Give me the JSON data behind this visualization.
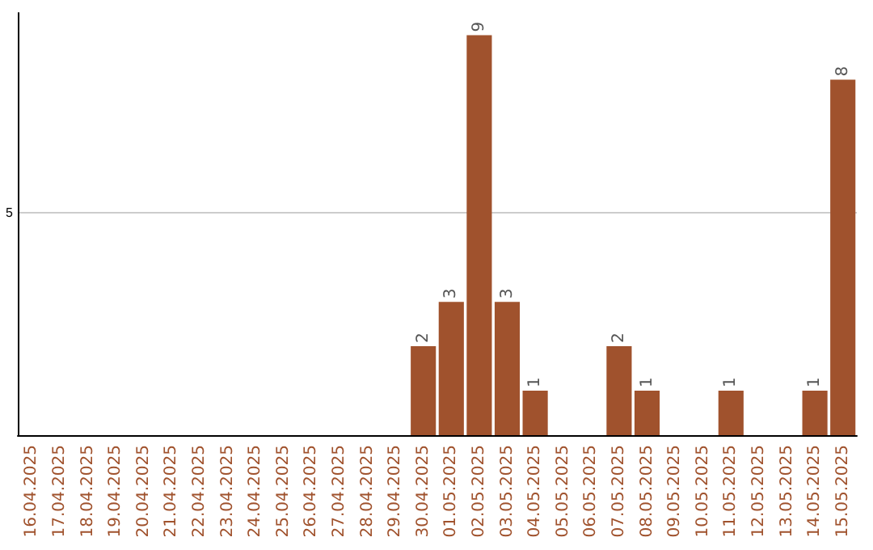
{
  "chart_data": {
    "type": "bar",
    "categories": [
      "16.04.2025",
      "17.04.2025",
      "18.04.2025",
      "19.04.2025",
      "20.04.2025",
      "21.04.2025",
      "22.04.2025",
      "23.04.2025",
      "24.04.2025",
      "25.04.2025",
      "26.04.2025",
      "27.04.2025",
      "28.04.2025",
      "29.04.2025",
      "30.04.2025",
      "01.05.2025",
      "02.05.2025",
      "03.05.2025",
      "04.05.2025",
      "05.05.2025",
      "06.05.2025",
      "07.05.2025",
      "08.05.2025",
      "09.05.2025",
      "10.05.2025",
      "11.05.2025",
      "12.05.2025",
      "13.05.2025",
      "14.05.2025",
      "15.05.2025"
    ],
    "values": [
      null,
      null,
      null,
      null,
      null,
      null,
      null,
      null,
      null,
      null,
      null,
      null,
      null,
      null,
      2,
      3,
      9,
      3,
      1,
      null,
      null,
      2,
      1,
      null,
      null,
      1,
      null,
      null,
      1,
      8
    ],
    "value_labels": [
      null,
      null,
      null,
      null,
      null,
      null,
      null,
      null,
      null,
      null,
      null,
      null,
      null,
      null,
      "2",
      "3",
      "9",
      "3",
      "1",
      null,
      null,
      "2",
      "1",
      null,
      null,
      "1",
      null,
      null,
      "1",
      "8"
    ],
    "color": "#a0522d",
    "ylim": [
      0,
      9.5
    ],
    "yticks": [
      5
    ],
    "grid": "y"
  }
}
